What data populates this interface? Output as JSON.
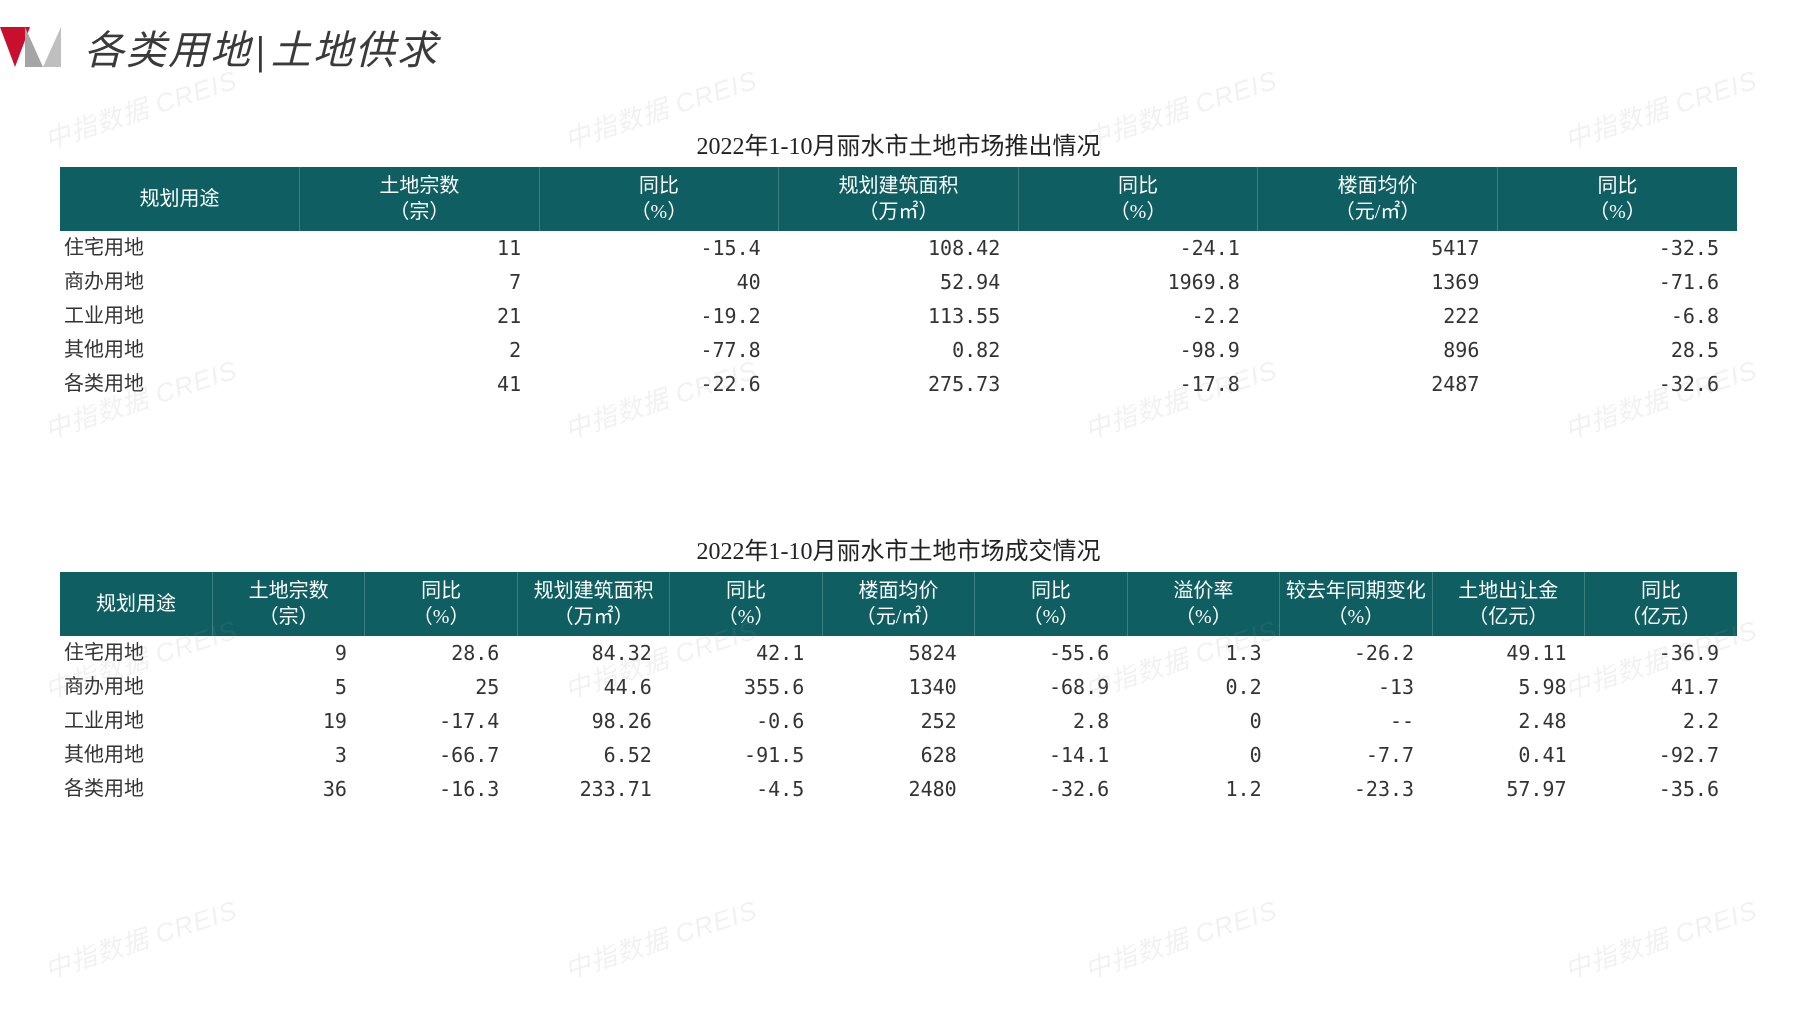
{
  "page": {
    "title_left": "各类用地",
    "title_right": "土地供求"
  },
  "colors": {
    "header_bg": "#0f5e62",
    "header_text": "#ffffff",
    "body_text": "#333333",
    "accent_red": "#c8102e",
    "accent_gray": "#bfbfbf"
  },
  "typography": {
    "title_fontsize": 40,
    "caption_fontsize": 24,
    "th_fontsize": 20,
    "td_fontsize": 20
  },
  "watermark": {
    "text": "中指数据 CREIS"
  },
  "table1": {
    "type": "table",
    "caption": "2022年1-10月丽水市土地市场推出情况",
    "columns": [
      {
        "label_line1": "规划用途",
        "label_line2": "",
        "align": "left"
      },
      {
        "label_line1": "土地宗数",
        "label_line2": "（宗）",
        "align": "right"
      },
      {
        "label_line1": "同比",
        "label_line2": "（%）",
        "align": "right"
      },
      {
        "label_line1": "规划建筑面积",
        "label_line2": "（万㎡）",
        "align": "right"
      },
      {
        "label_line1": "同比",
        "label_line2": "（%）",
        "align": "right"
      },
      {
        "label_line1": "楼面均价",
        "label_line2": "（元/㎡）",
        "align": "right"
      },
      {
        "label_line1": "同比",
        "label_line2": "（%）",
        "align": "right"
      }
    ],
    "rows": [
      {
        "label": "住宅用地",
        "cells": [
          "11",
          "-15.4",
          "108.42",
          "-24.1",
          "5417",
          "-32.5"
        ]
      },
      {
        "label": "商办用地",
        "cells": [
          "7",
          "40",
          "52.94",
          "1969.8",
          "1369",
          "-71.6"
        ]
      },
      {
        "label": "工业用地",
        "cells": [
          "21",
          "-19.2",
          "113.55",
          "-2.2",
          "222",
          "-6.8"
        ]
      },
      {
        "label": "其他用地",
        "cells": [
          "2",
          "-77.8",
          "0.82",
          "-98.9",
          "896",
          "28.5"
        ]
      },
      {
        "label": "各类用地",
        "cells": [
          "41",
          "-22.6",
          "275.73",
          "-17.8",
          "2487",
          "-32.6"
        ]
      }
    ]
  },
  "table2": {
    "type": "table",
    "caption": "2022年1-10月丽水市土地市场成交情况",
    "columns": [
      {
        "label_line1": "规划用途",
        "label_line2": "",
        "align": "left"
      },
      {
        "label_line1": "土地宗数",
        "label_line2": "（宗）",
        "align": "right"
      },
      {
        "label_line1": "同比",
        "label_line2": "（%）",
        "align": "right"
      },
      {
        "label_line1": "规划建筑面积",
        "label_line2": "（万㎡）",
        "align": "right"
      },
      {
        "label_line1": "同比",
        "label_line2": "（%）",
        "align": "right"
      },
      {
        "label_line1": "楼面均价",
        "label_line2": "（元/㎡）",
        "align": "right"
      },
      {
        "label_line1": "同比",
        "label_line2": "（%）",
        "align": "right"
      },
      {
        "label_line1": "溢价率",
        "label_line2": "（%）",
        "align": "right"
      },
      {
        "label_line1": "较去年同期变化",
        "label_line2": "（%）",
        "align": "right"
      },
      {
        "label_line1": "土地出让金",
        "label_line2": "（亿元）",
        "align": "right"
      },
      {
        "label_line1": "同比",
        "label_line2": "（亿元）",
        "align": "right"
      }
    ],
    "rows": [
      {
        "label": "住宅用地",
        "cells": [
          "9",
          "28.6",
          "84.32",
          "42.1",
          "5824",
          "-55.6",
          "1.3",
          "-26.2",
          "49.11",
          "-36.9"
        ]
      },
      {
        "label": "商办用地",
        "cells": [
          "5",
          "25",
          "44.6",
          "355.6",
          "1340",
          "-68.9",
          "0.2",
          "-13",
          "5.98",
          "41.7"
        ]
      },
      {
        "label": "工业用地",
        "cells": [
          "19",
          "-17.4",
          "98.26",
          "-0.6",
          "252",
          "2.8",
          "0",
          "--",
          "2.48",
          "2.2"
        ]
      },
      {
        "label": "其他用地",
        "cells": [
          "3",
          "-66.7",
          "6.52",
          "-91.5",
          "628",
          "-14.1",
          "0",
          "-7.7",
          "0.41",
          "-92.7"
        ]
      },
      {
        "label": "各类用地",
        "cells": [
          "36",
          "-16.3",
          "233.71",
          "-4.5",
          "2480",
          "-32.6",
          "1.2",
          "-23.3",
          "57.97",
          "-35.6"
        ]
      }
    ]
  }
}
